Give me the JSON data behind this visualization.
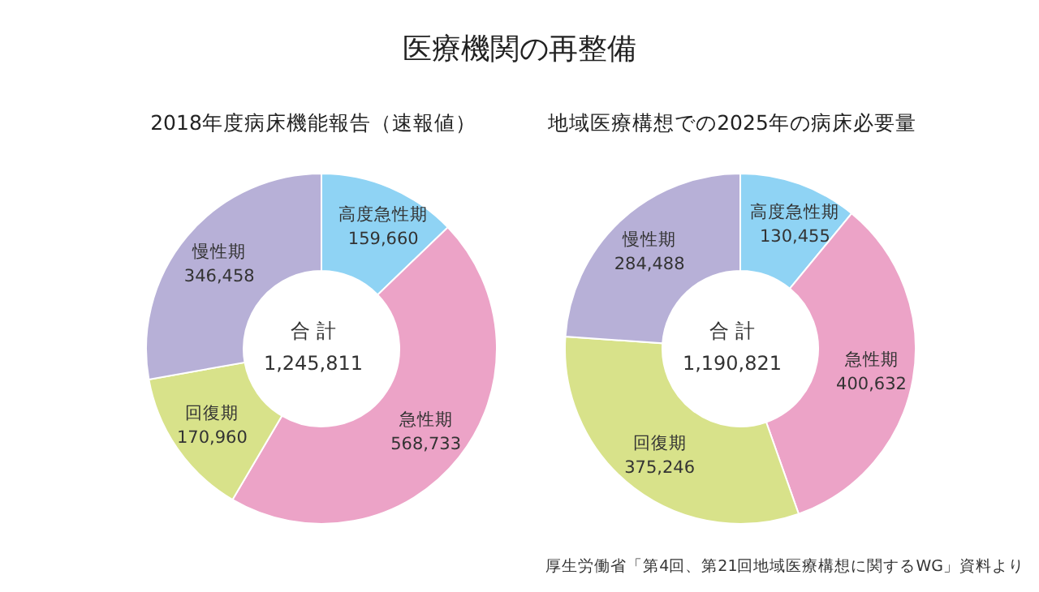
{
  "chart_data": [
    {
      "type": "donut",
      "title": "医療機関の再整備",
      "subtitle": "2018年度病床機能報告（速報値）",
      "categories": [
        "高度急性期",
        "急性期",
        "回復期",
        "慢性期"
      ],
      "values": [
        159660,
        568733,
        170960,
        346458
      ],
      "colors": [
        "#8fd3f4",
        "#eca3c7",
        "#d8e28a",
        "#b7b0d7"
      ],
      "value_labels": [
        "159,660",
        "568,733",
        "170,960",
        "346,458"
      ],
      "annotations": [
        "合 計",
        "1,245,811"
      ]
    },
    {
      "type": "donut",
      "subtitle": "地域医療構想での2025年の病床必要量",
      "categories": [
        "高度急性期",
        "急性期",
        "回復期",
        "慢性期"
      ],
      "values": [
        130455,
        400632,
        375246,
        284488
      ],
      "colors": [
        "#8fd3f4",
        "#eca3c7",
        "#d8e28a",
        "#b7b0d7"
      ],
      "value_labels": [
        "130,455",
        "400,632",
        "375,246",
        "284,488"
      ],
      "annotations": [
        "合 計",
        "1,190,821",
        "厚生労働省「第4回、第21回地域医療構想に関するWG」資料より"
      ]
    }
  ]
}
